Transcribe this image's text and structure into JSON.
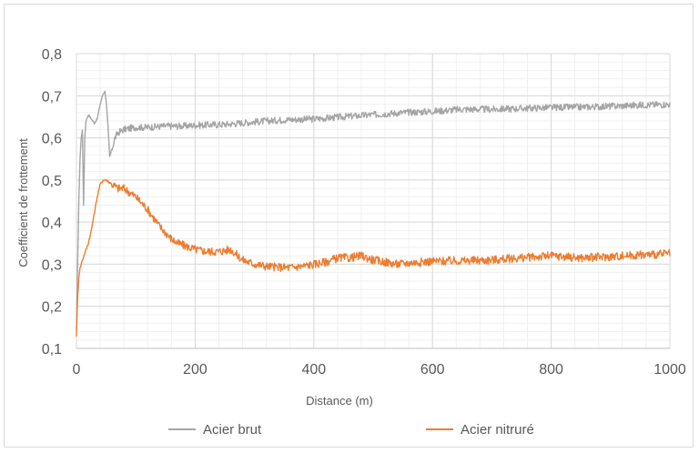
{
  "chart_data": {
    "type": "line",
    "title": "",
    "xlabel": "Distance (m)",
    "ylabel": "Coefficient de frottement",
    "xlim": [
      0,
      1000
    ],
    "ylim": [
      0.1,
      0.8
    ],
    "x_ticks": [
      0,
      200,
      400,
      600,
      800,
      1000
    ],
    "x_tick_labels": [
      "0",
      "200",
      "400",
      "600",
      "800",
      "1000"
    ],
    "y_ticks": [
      0.1,
      0.2,
      0.3,
      0.4,
      0.5,
      0.6,
      0.7,
      0.8
    ],
    "y_tick_labels": [
      "0,1",
      "0,2",
      "0,3",
      "0,4",
      "0,5",
      "0,6",
      "0,7",
      "0,8"
    ],
    "grid": true,
    "minor_grid": true,
    "legend_position": "bottom",
    "series": [
      {
        "name": "Acier brut",
        "color": "#a5a5a5",
        "x": [
          0,
          2,
          4,
          6,
          8,
          10,
          12,
          14,
          16,
          20,
          25,
          30,
          35,
          40,
          45,
          48,
          50,
          53,
          56,
          60,
          65,
          70,
          80,
          100,
          120,
          150,
          180,
          200,
          250,
          300,
          350,
          400,
          450,
          500,
          550,
          600,
          650,
          700,
          750,
          800,
          850,
          900,
          950,
          1000
        ],
        "y": [
          0.14,
          0.3,
          0.45,
          0.55,
          0.6,
          0.62,
          0.44,
          0.6,
          0.64,
          0.655,
          0.645,
          0.635,
          0.645,
          0.68,
          0.705,
          0.71,
          0.69,
          0.63,
          0.555,
          0.575,
          0.6,
          0.612,
          0.62,
          0.625,
          0.625,
          0.628,
          0.628,
          0.63,
          0.632,
          0.638,
          0.643,
          0.645,
          0.65,
          0.655,
          0.66,
          0.663,
          0.668,
          0.668,
          0.67,
          0.672,
          0.673,
          0.675,
          0.678,
          0.68
        ]
      },
      {
        "name": "Acier nitruré",
        "color": "#ed7d31",
        "x": [
          0,
          2,
          4,
          6,
          8,
          10,
          15,
          20,
          25,
          30,
          35,
          40,
          45,
          50,
          55,
          60,
          70,
          80,
          90,
          100,
          110,
          120,
          130,
          140,
          150,
          160,
          170,
          180,
          200,
          220,
          240,
          260,
          280,
          300,
          320,
          340,
          360,
          380,
          400,
          420,
          440,
          460,
          480,
          500,
          520,
          540,
          560,
          580,
          600,
          650,
          700,
          750,
          800,
          850,
          900,
          950,
          1000
        ],
        "y": [
          0.13,
          0.22,
          0.27,
          0.29,
          0.3,
          0.31,
          0.33,
          0.35,
          0.38,
          0.42,
          0.46,
          0.49,
          0.5,
          0.5,
          0.495,
          0.49,
          0.48,
          0.48,
          0.47,
          0.46,
          0.445,
          0.43,
          0.41,
          0.39,
          0.375,
          0.36,
          0.35,
          0.345,
          0.335,
          0.33,
          0.33,
          0.335,
          0.31,
          0.3,
          0.295,
          0.293,
          0.292,
          0.295,
          0.3,
          0.305,
          0.315,
          0.315,
          0.32,
          0.31,
          0.305,
          0.3,
          0.303,
          0.305,
          0.307,
          0.308,
          0.31,
          0.315,
          0.32,
          0.315,
          0.318,
          0.322,
          0.325
        ]
      }
    ]
  }
}
